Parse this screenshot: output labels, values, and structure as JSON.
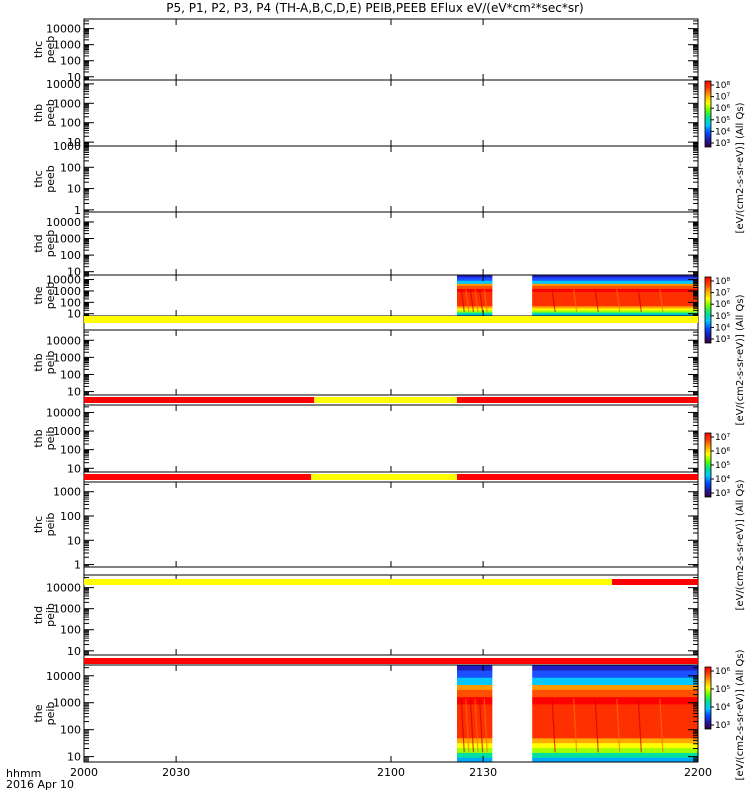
{
  "title_html": "P5, P1, P2, P3, P4 (TH-A,B,C,D,E) PEIB,PEEB EFlux eV/(eV*cm²*sec*sr)",
  "footer": {
    "axis_unit": "hhmm",
    "date": "2016 Apr 10"
  },
  "chart_data": {
    "type": "heatmap",
    "x_ticks": [
      "2000",
      "2030",
      "2100",
      "2130",
      "2200"
    ],
    "x_tick_values": [
      2000,
      2030,
      2100,
      2130,
      2200
    ],
    "xlim": [
      2000,
      2200
    ],
    "panels": [
      {
        "ylabel": [
          "thc",
          "peeb"
        ],
        "ticks": [
          "10000",
          "1000",
          "100",
          "10"
        ],
        "tick_exp": [
          4,
          3,
          2,
          1
        ],
        "ylim_exp": [
          0.8,
          4.6
        ],
        "spectrogram": []
      },
      {
        "ylabel": [
          "thb",
          "peeb"
        ],
        "ticks": [
          "10000",
          "1000",
          "100",
          "10"
        ],
        "tick_exp": [
          4,
          3,
          2,
          1
        ],
        "ylim_exp": [
          0.8,
          4.2
        ],
        "spectrogram": []
      },
      {
        "ylabel": [
          "thc",
          "peeb"
        ],
        "ticks": [
          "1000",
          "100",
          "10",
          "1"
        ],
        "tick_exp": [
          3,
          2,
          1,
          0
        ],
        "ylim_exp": [
          -0.1,
          3.0
        ],
        "spectrogram": []
      },
      {
        "ylabel": [
          "thd",
          "peeb"
        ],
        "ticks": [
          "10000",
          "1000",
          "100",
          "10"
        ],
        "tick_exp": [
          4,
          3,
          2,
          1
        ],
        "ylim_exp": [
          0.8,
          4.6
        ],
        "spectrogram": []
      },
      {
        "ylabel": [
          "the",
          "peeb"
        ],
        "ticks": [
          "10000",
          "1000",
          "100",
          "10"
        ],
        "tick_exp": [
          4,
          3,
          2,
          1
        ],
        "ylim_exp": [
          0.8,
          4.4
        ],
        "spectrogram": [
          {
            "t_start": 2121.5,
            "t_end": 2133.0
          },
          {
            "t_start": 2146.0,
            "t_end": 2200.0
          }
        ]
      },
      {
        "ylabel": [
          "thb",
          "peib"
        ],
        "ticks": [
          "10000",
          "1000",
          "100",
          "10"
        ],
        "tick_exp": [
          4,
          3,
          2,
          1
        ],
        "ylim_exp": [
          0.8,
          4.6
        ],
        "spectrogram": []
      },
      {
        "ylabel": [
          "thb",
          "peib"
        ],
        "ticks": [
          "10000",
          "1000",
          "100",
          "10"
        ],
        "tick_exp": [
          4,
          3,
          2,
          1
        ],
        "ylim_exp": [
          0.8,
          4.4
        ],
        "spectrogram": []
      },
      {
        "ylabel": [
          "thc",
          "peib"
        ],
        "ticks": [
          "1000",
          "100",
          "10",
          "1"
        ],
        "tick_exp": [
          3,
          2,
          1,
          0
        ],
        "ylim_exp": [
          -0.1,
          3.4
        ],
        "spectrogram": []
      },
      {
        "ylabel": [
          "thd",
          "peib"
        ],
        "ticks": [
          "10000",
          "1000",
          "100",
          "10"
        ],
        "tick_exp": [
          4,
          3,
          2,
          1
        ],
        "ylim_exp": [
          0.8,
          4.6
        ],
        "spectrogram": []
      },
      {
        "ylabel": [
          "the",
          "peib"
        ],
        "ticks": [
          "10000",
          "1000",
          "100",
          "10"
        ],
        "tick_exp": [
          4,
          3,
          2,
          1
        ],
        "ylim_exp": [
          0.8,
          4.4
        ],
        "spectrogram": [
          {
            "t_start": 2121.5,
            "t_end": 2133.0
          },
          {
            "t_start": 2146.0,
            "t_end": 2200.0
          }
        ]
      }
    ],
    "status_bars": [
      {
        "segments": [
          {
            "from": 2000,
            "to": 2200,
            "color": "#ffff00"
          }
        ]
      },
      {
        "segments": [
          {
            "from": 2000,
            "to": 2075,
            "color": "#ff0000"
          },
          {
            "from": 2075,
            "to": 2121.5,
            "color": "#ffff00"
          },
          {
            "from": 2121.5,
            "to": 2200,
            "color": "#ff0000"
          }
        ]
      },
      {
        "segments": [
          {
            "from": 2000,
            "to": 2074,
            "color": "#ff0000"
          },
          {
            "from": 2074,
            "to": 2121.5,
            "color": "#ffff00"
          },
          {
            "from": 2121.5,
            "to": 2200,
            "color": "#ff0000"
          }
        ]
      },
      {
        "segments": [
          {
            "from": 2000,
            "to": 2172,
            "color": "#ffff00"
          },
          {
            "from": 2172,
            "to": 2200,
            "color": "#ff0000"
          }
        ]
      },
      {
        "segments": [
          {
            "from": 2000,
            "to": 2200,
            "color": "#ff0000"
          }
        ]
      }
    ],
    "colorbars": [
      {
        "label": "[eV/(cm2-s-sr-eV)] (All Qs)",
        "labels": [
          "10⁸",
          "10⁷",
          "10⁶",
          "10⁵",
          "10⁴",
          "10³"
        ]
      },
      {
        "label": "[eV/(cm2-s-sr-eV)] (All Qs)",
        "labels": [
          "10⁸",
          "10⁷",
          "10⁶",
          "10⁵",
          "10⁴",
          "10³"
        ]
      },
      {
        "label": "[eV/(cm2-s-sr-eV)] (All Qs)",
        "labels": [
          "10⁷",
          "10⁶",
          "10⁵",
          "10⁴",
          "10³"
        ]
      },
      {
        "label": "[eV/(cm2-s-sr-eV)] (All Qs)",
        "labels": [
          "10⁶",
          "10⁵",
          "10⁴",
          "10³"
        ]
      }
    ],
    "colormap": [
      "#3a003a",
      "#1a1aaa",
      "#0050ff",
      "#00c8ff",
      "#00e090",
      "#60ff00",
      "#ffff00",
      "#ffaa00",
      "#ff4000",
      "#ff0000"
    ]
  }
}
